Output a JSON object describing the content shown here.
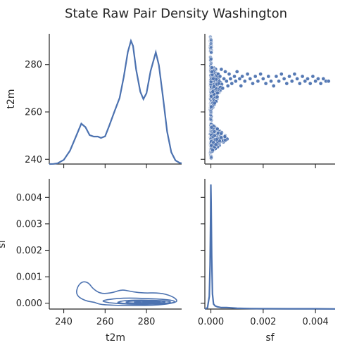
{
  "chart_data": {
    "type": "pairplot",
    "title": "State Raw Pair Density Washington",
    "variables": [
      "t2m",
      "sf"
    ],
    "color": "#4c72b0",
    "panels": {
      "t2m_ticks": [
        240,
        260,
        280
      ],
      "t2m_range": [
        233,
        297
      ],
      "t2m_y_range": [
        238,
        293
      ],
      "sf_ticks": [
        0.0,
        0.002,
        0.004
      ],
      "sf_y_ticks": [
        0.0,
        0.001,
        0.002,
        0.003,
        0.004
      ],
      "sf_y_tick_labels": [
        "0.000",
        "0.001",
        "0.002",
        "0.003",
        "0.004"
      ],
      "sf_x_tick_labels": [
        "0.000",
        "0.002",
        "0.004"
      ],
      "sf_range": [
        -0.00023,
        0.00475
      ],
      "sf_y_range": [
        -0.00022,
        0.0047
      ]
    },
    "t2m_density": [
      [
        233,
        0
      ],
      [
        235,
        0.01
      ],
      [
        237,
        0.05
      ],
      [
        240,
        0.28
      ],
      [
        243,
        0.9
      ],
      [
        246,
        1.9
      ],
      [
        248.5,
        2.74
      ],
      [
        250.5,
        2.5
      ],
      [
        252.5,
        1.96
      ],
      [
        254.5,
        1.86
      ],
      [
        256.5,
        1.86
      ],
      [
        258,
        1.77
      ],
      [
        260,
        1.88
      ],
      [
        262,
        2.6
      ],
      [
        264.5,
        3.55
      ],
      [
        267,
        4.48
      ],
      [
        269,
        5.9
      ],
      [
        271,
        7.6
      ],
      [
        272.5,
        8.35
      ],
      [
        273.5,
        8.0
      ],
      [
        275,
        6.4
      ],
      [
        277,
        4.9
      ],
      [
        278.5,
        4.4
      ],
      [
        280,
        4.8
      ],
      [
        282,
        6.3
      ],
      [
        284.5,
        7.57
      ],
      [
        286,
        6.7
      ],
      [
        288,
        4.5
      ],
      [
        290,
        2.2
      ],
      [
        292,
        0.8
      ],
      [
        294,
        0.25
      ],
      [
        296,
        0.08
      ],
      [
        297,
        0.05
      ]
    ],
    "sf_density": [
      [
        -0.00023,
        0
      ],
      [
        -0.00013,
        0.01
      ],
      [
        -6e-05,
        0.1
      ],
      [
        -3e-05,
        0.35
      ],
      [
        -1e-05,
        0.75
      ],
      [
        0.0,
        0.99
      ],
      [
        1e-05,
        0.85
      ],
      [
        3e-05,
        0.42
      ],
      [
        6e-05,
        0.12
      ],
      [
        0.0001,
        0.04
      ],
      [
        0.00016,
        0.025
      ],
      [
        0.00025,
        0.018
      ],
      [
        0.0004,
        0.012
      ],
      [
        0.0006,
        0.012
      ],
      [
        0.00075,
        0.01
      ],
      [
        0.001,
        0.006
      ],
      [
        0.0015,
        0.004
      ],
      [
        0.002,
        0.003
      ],
      [
        0.003,
        0.002
      ],
      [
        0.004,
        0.002
      ],
      [
        0.00475,
        0.001
      ]
    ],
    "scatter_arm": [
      [
        0.00025,
        268
      ],
      [
        0.00028,
        276
      ],
      [
        0.0003,
        272
      ],
      [
        0.00035,
        275
      ],
      [
        0.0004,
        278
      ],
      [
        0.00045,
        270
      ],
      [
        0.0005,
        274
      ],
      [
        0.00055,
        277
      ],
      [
        0.0006,
        273
      ],
      [
        0.00065,
        271
      ],
      [
        0.0007,
        276
      ],
      [
        0.00075,
        274
      ],
      [
        0.0008,
        272
      ],
      [
        0.0009,
        275
      ],
      [
        0.00095,
        273
      ],
      [
        0.001,
        277
      ],
      [
        0.0011,
        274
      ],
      [
        0.00115,
        271
      ],
      [
        0.0012,
        275
      ],
      [
        0.0013,
        273
      ],
      [
        0.0014,
        276
      ],
      [
        0.0015,
        274
      ],
      [
        0.0016,
        272
      ],
      [
        0.0017,
        275
      ],
      [
        0.0018,
        273
      ],
      [
        0.0019,
        276
      ],
      [
        0.002,
        274
      ],
      [
        0.0021,
        272
      ],
      [
        0.0022,
        275
      ],
      [
        0.0023,
        273
      ],
      [
        0.0024,
        271
      ],
      [
        0.0025,
        275
      ],
      [
        0.0026,
        273
      ],
      [
        0.0027,
        276
      ],
      [
        0.0028,
        274
      ],
      [
        0.0029,
        272
      ],
      [
        0.003,
        275
      ],
      [
        0.0031,
        273
      ],
      [
        0.0032,
        276
      ],
      [
        0.0033,
        274
      ],
      [
        0.0034,
        272
      ],
      [
        0.0035,
        275
      ],
      [
        0.0036,
        273
      ],
      [
        0.0037,
        274
      ],
      [
        0.0038,
        272
      ],
      [
        0.0039,
        275
      ],
      [
        0.004,
        273
      ],
      [
        0.0041,
        274
      ],
      [
        0.0042,
        272
      ],
      [
        0.0043,
        274
      ],
      [
        0.0044,
        273
      ],
      [
        0.0045,
        273
      ]
    ],
    "contour_levels": [
      [
        [
          255,
          3e-05
        ],
        [
          250,
          0.0001
        ],
        [
          246,
          0.0003
        ],
        [
          246.5,
          0.00062
        ],
        [
          249,
          0.00083
        ],
        [
          252,
          0.00078
        ],
        [
          254,
          0.00055
        ],
        [
          258,
          0.00035
        ],
        [
          264,
          0.0004
        ],
        [
          268,
          0.00052
        ],
        [
          272,
          0.00045
        ],
        [
          278,
          0.00038
        ],
        [
          286,
          0.0004
        ],
        [
          292,
          0.00028
        ],
        [
          295,
          0.00012
        ],
        [
          294,
          2e-05
        ],
        [
          285,
          -8e-05
        ],
        [
          270,
          -9e-05
        ],
        [
          258,
          -6e-05
        ],
        [
          255,
          3e-05
        ]
      ],
      [
        [
          262,
          2e-05
        ],
        [
          258,
          8e-05
        ],
        [
          262,
          0.00015
        ],
        [
          270,
          0.0002
        ],
        [
          280,
          0.00018
        ],
        [
          290,
          0.00014
        ],
        [
          294,
          8e-05
        ],
        [
          293,
          1e-05
        ],
        [
          284,
          -4e-05
        ],
        [
          270,
          -4e-05
        ],
        [
          262,
          2e-05
        ]
      ],
      [
        [
          266,
          3e-05
        ],
        [
          268,
          9e-05
        ],
        [
          275,
          0.00012
        ],
        [
          285,
          0.00011
        ],
        [
          292,
          7e-05
        ],
        [
          291,
          1e-05
        ],
        [
          282,
          -2e-05
        ],
        [
          270,
          -2e-05
        ],
        [
          266,
          3e-05
        ]
      ],
      [
        [
          270,
          4e-05
        ],
        [
          272,
          8e-05
        ],
        [
          280,
          0.0001
        ],
        [
          289,
          7e-05
        ],
        [
          289,
          2e-05
        ],
        [
          280,
          0.0
        ],
        [
          272,
          1e-05
        ],
        [
          270,
          4e-05
        ]
      ],
      [
        [
          274,
          4e-05
        ],
        [
          278,
          8e-05
        ],
        [
          286,
          6e-05
        ],
        [
          287,
          3e-05
        ],
        [
          280,
          1e-05
        ],
        [
          274,
          4e-05
        ]
      ],
      [
        [
          278,
          4e-05
        ],
        [
          282,
          6e-05
        ],
        [
          285,
          4e-05
        ],
        [
          282,
          2e-05
        ],
        [
          278,
          4e-05
        ]
      ]
    ]
  }
}
